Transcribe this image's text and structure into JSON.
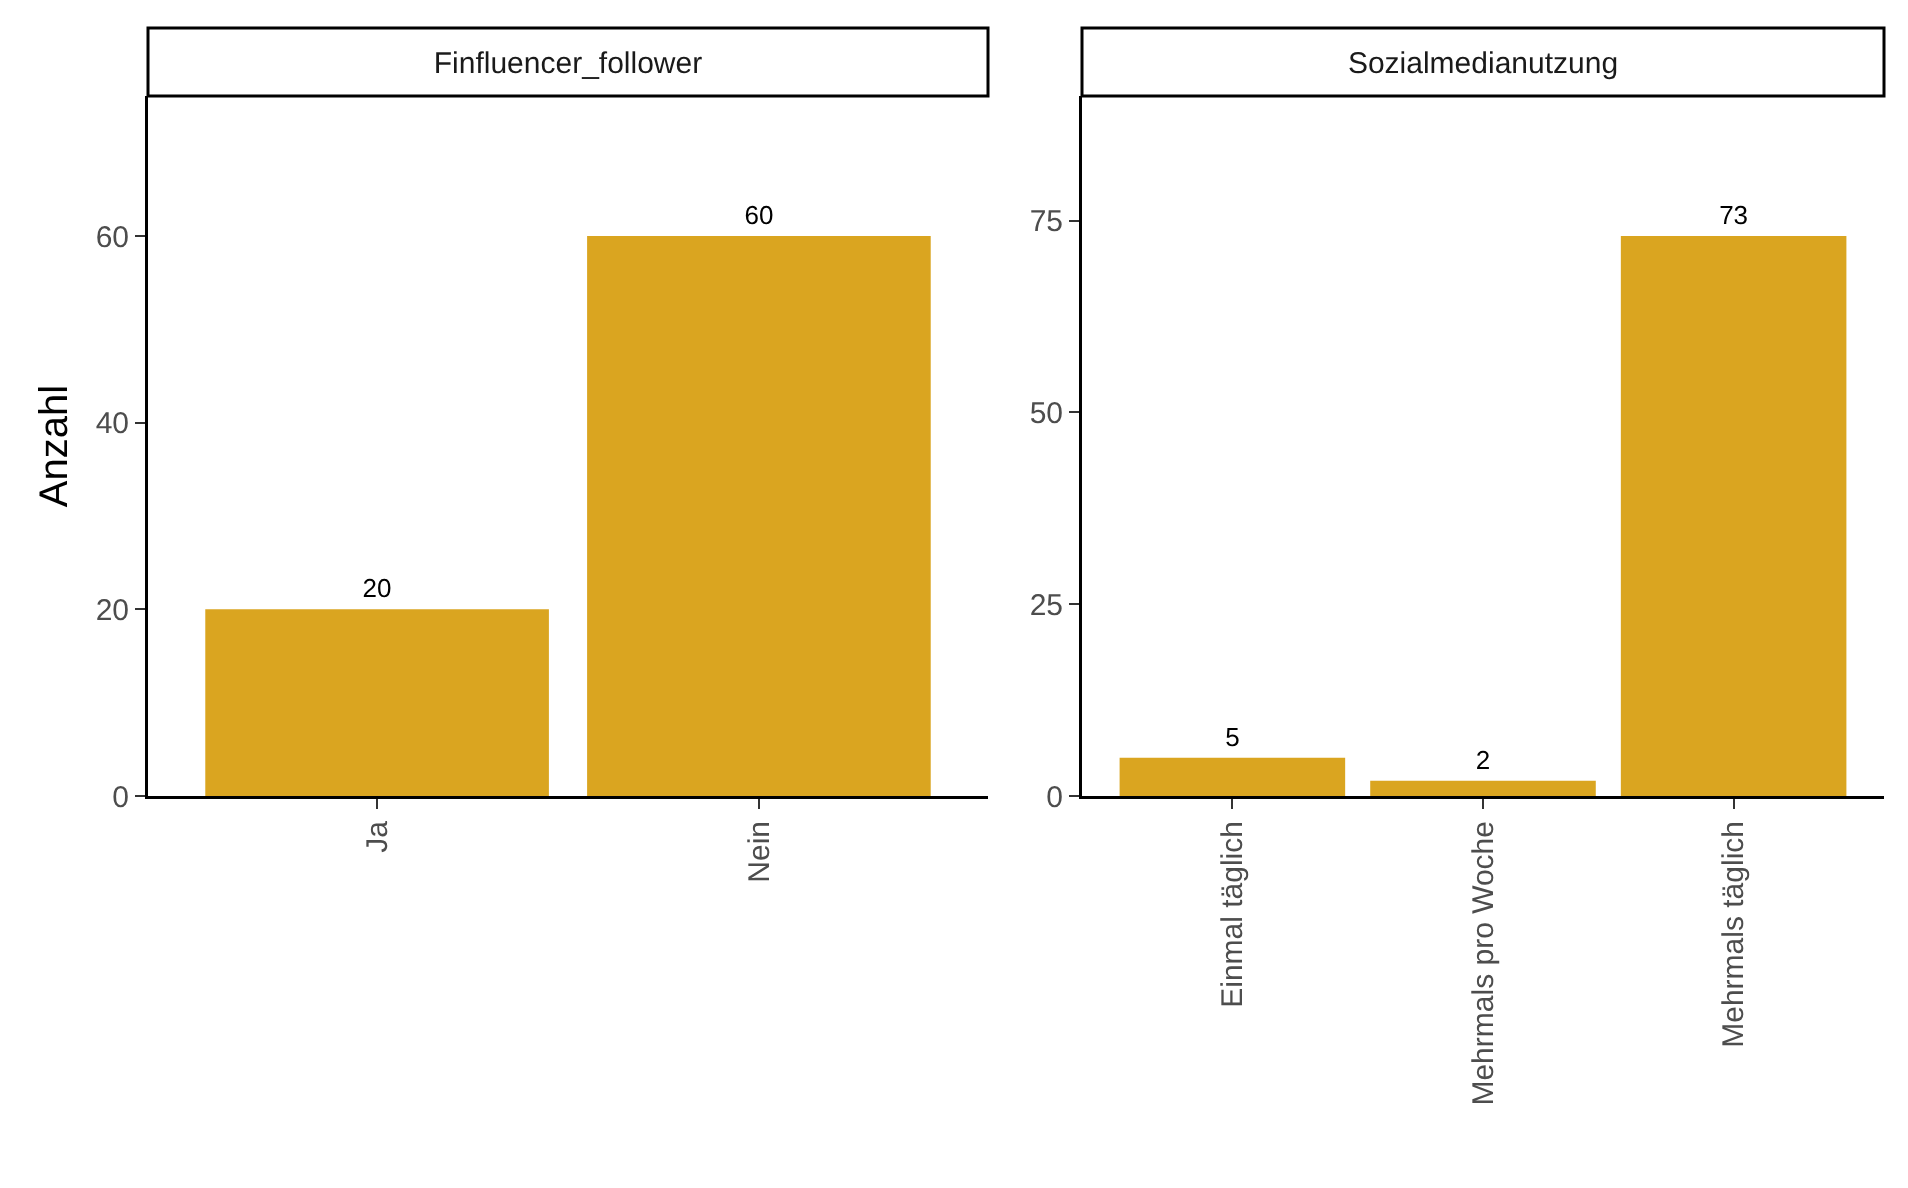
{
  "chart_data": [
    {
      "type": "bar",
      "title": "Finfluencer_follower",
      "ylabel": "Anzahl",
      "categories": [
        "Ja",
        "Nein"
      ],
      "values": [
        20,
        60
      ],
      "color": "#daa520",
      "ylim": [
        0,
        75
      ],
      "yticks": [
        0,
        20,
        40,
        60
      ],
      "data_labels": true
    },
    {
      "type": "bar",
      "title": "Sozialmedianutzung",
      "categories": [
        "Einmal täglich",
        "Mehrmals pro Woche",
        "Mehrmals täglich"
      ],
      "values": [
        5,
        2,
        73
      ],
      "color": "#daa520",
      "ylim": [
        0,
        91.25
      ],
      "yticks": [
        0,
        25,
        50,
        75
      ],
      "data_labels": true
    }
  ]
}
